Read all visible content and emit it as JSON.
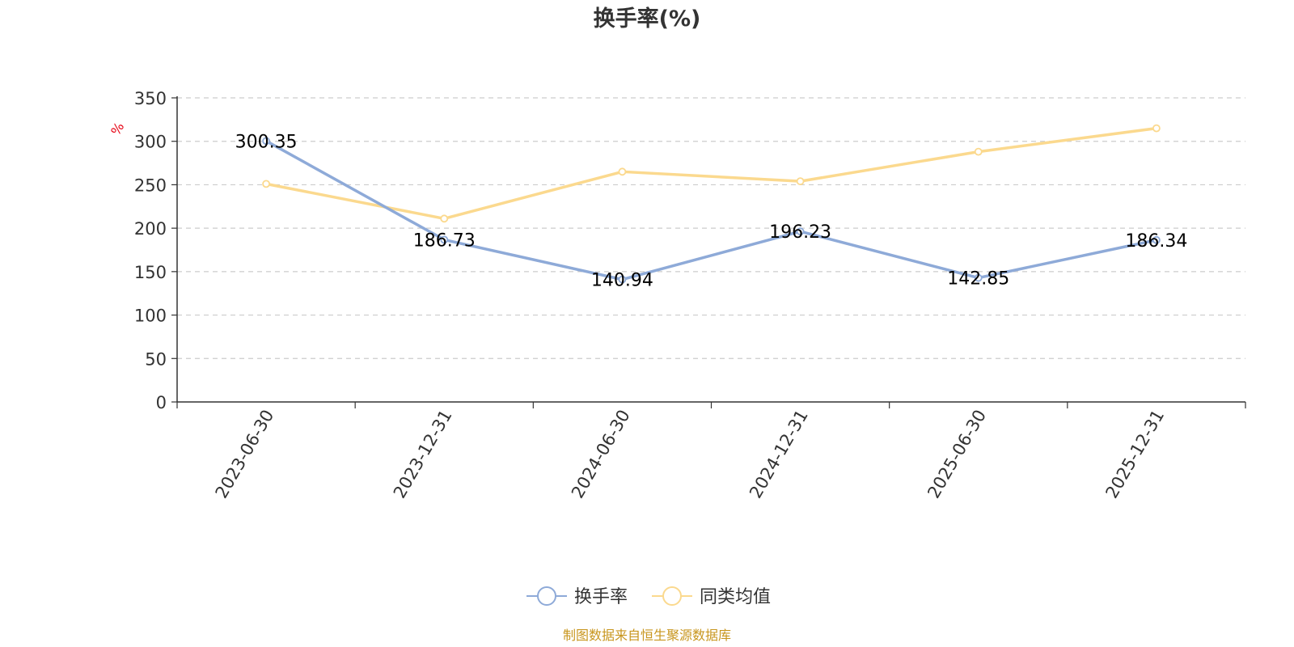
{
  "chart_data": {
    "type": "line",
    "title": "换手率(%)",
    "y_unit": "%",
    "categories": [
      "2023-06-30",
      "2023-12-31",
      "2024-06-30",
      "2024-12-31",
      "2025-06-30",
      "2025-12-31"
    ],
    "series": [
      {
        "name": "换手率",
        "values": [
          300.35,
          186.73,
          140.94,
          196.23,
          142.85,
          186.34
        ],
        "color": "#8eaad8",
        "show_labels": true
      },
      {
        "name": "同类均值",
        "values": [
          251,
          211,
          265,
          254,
          288,
          315
        ],
        "color": "#fbd98e",
        "show_labels": false
      }
    ],
    "ylim": [
      0,
      350
    ],
    "y_ticks": [
      0,
      50,
      100,
      150,
      200,
      250,
      300,
      350
    ],
    "grid": true,
    "legend_position": "bottom-center"
  },
  "source_note": "制图数据来自恒生聚源数据库"
}
